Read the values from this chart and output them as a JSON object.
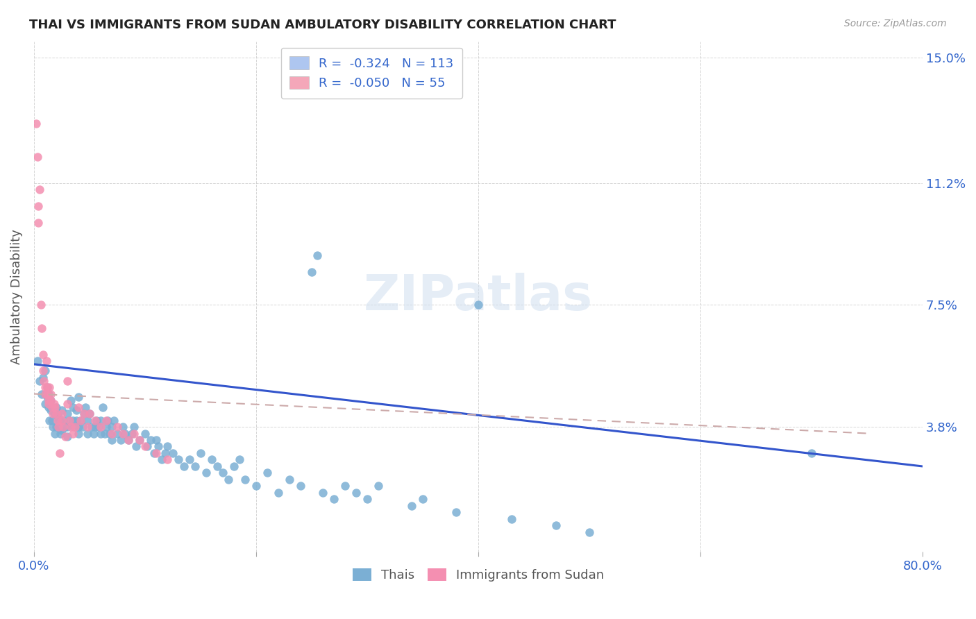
{
  "title": "THAI VS IMMIGRANTS FROM SUDAN AMBULATORY DISABILITY CORRELATION CHART",
  "source": "Source: ZipAtlas.com",
  "ylabel": "Ambulatory Disability",
  "yticks": [
    0.0,
    0.038,
    0.075,
    0.112,
    0.15
  ],
  "ytick_labels": [
    "",
    "3.8%",
    "7.5%",
    "11.2%",
    "15.0%"
  ],
  "xlim": [
    0.0,
    0.8
  ],
  "ylim": [
    0.0,
    0.155
  ],
  "legend_entries": [
    {
      "label": "R =  -0.324   N = 113",
      "color": "#aec6f0"
    },
    {
      "label": "R =  -0.050   N = 55",
      "color": "#f4a7b9"
    }
  ],
  "watermark": "ZIPatlas",
  "thais_color": "#7bafd4",
  "sudan_color": "#f48fb1",
  "trend_thai_color": "#3355cc",
  "background_color": "#ffffff",
  "thais": [
    [
      0.003,
      0.058
    ],
    [
      0.005,
      0.052
    ],
    [
      0.007,
      0.048
    ],
    [
      0.008,
      0.053
    ],
    [
      0.01,
      0.055
    ],
    [
      0.01,
      0.048
    ],
    [
      0.01,
      0.045
    ],
    [
      0.012,
      0.05
    ],
    [
      0.012,
      0.047
    ],
    [
      0.013,
      0.044
    ],
    [
      0.013,
      0.048
    ],
    [
      0.014,
      0.04
    ],
    [
      0.015,
      0.046
    ],
    [
      0.015,
      0.043
    ],
    [
      0.016,
      0.04
    ],
    [
      0.017,
      0.038
    ],
    [
      0.018,
      0.042
    ],
    [
      0.019,
      0.036
    ],
    [
      0.02,
      0.044
    ],
    [
      0.02,
      0.038
    ],
    [
      0.022,
      0.041
    ],
    [
      0.022,
      0.038
    ],
    [
      0.023,
      0.04
    ],
    [
      0.024,
      0.036
    ],
    [
      0.025,
      0.043
    ],
    [
      0.025,
      0.037
    ],
    [
      0.026,
      0.04
    ],
    [
      0.028,
      0.038
    ],
    [
      0.03,
      0.042
    ],
    [
      0.03,
      0.038
    ],
    [
      0.03,
      0.035
    ],
    [
      0.032,
      0.04
    ],
    [
      0.033,
      0.046
    ],
    [
      0.035,
      0.044
    ],
    [
      0.035,
      0.04
    ],
    [
      0.036,
      0.038
    ],
    [
      0.038,
      0.043
    ],
    [
      0.038,
      0.04
    ],
    [
      0.04,
      0.047
    ],
    [
      0.04,
      0.038
    ],
    [
      0.04,
      0.036
    ],
    [
      0.042,
      0.04
    ],
    [
      0.044,
      0.038
    ],
    [
      0.045,
      0.042
    ],
    [
      0.046,
      0.044
    ],
    [
      0.048,
      0.04
    ],
    [
      0.048,
      0.036
    ],
    [
      0.05,
      0.042
    ],
    [
      0.052,
      0.038
    ],
    [
      0.054,
      0.036
    ],
    [
      0.055,
      0.038
    ],
    [
      0.056,
      0.04
    ],
    [
      0.058,
      0.038
    ],
    [
      0.06,
      0.036
    ],
    [
      0.06,
      0.04
    ],
    [
      0.062,
      0.044
    ],
    [
      0.064,
      0.036
    ],
    [
      0.065,
      0.038
    ],
    [
      0.066,
      0.04
    ],
    [
      0.068,
      0.036
    ],
    [
      0.07,
      0.038
    ],
    [
      0.07,
      0.034
    ],
    [
      0.072,
      0.04
    ],
    [
      0.075,
      0.036
    ],
    [
      0.078,
      0.034
    ],
    [
      0.08,
      0.038
    ],
    [
      0.082,
      0.036
    ],
    [
      0.085,
      0.034
    ],
    [
      0.088,
      0.036
    ],
    [
      0.09,
      0.038
    ],
    [
      0.092,
      0.032
    ],
    [
      0.095,
      0.034
    ],
    [
      0.1,
      0.036
    ],
    [
      0.102,
      0.032
    ],
    [
      0.105,
      0.034
    ],
    [
      0.108,
      0.03
    ],
    [
      0.11,
      0.034
    ],
    [
      0.112,
      0.032
    ],
    [
      0.115,
      0.028
    ],
    [
      0.118,
      0.03
    ],
    [
      0.12,
      0.032
    ],
    [
      0.125,
      0.03
    ],
    [
      0.13,
      0.028
    ],
    [
      0.135,
      0.026
    ],
    [
      0.14,
      0.028
    ],
    [
      0.145,
      0.026
    ],
    [
      0.15,
      0.03
    ],
    [
      0.155,
      0.024
    ],
    [
      0.16,
      0.028
    ],
    [
      0.165,
      0.026
    ],
    [
      0.17,
      0.024
    ],
    [
      0.175,
      0.022
    ],
    [
      0.18,
      0.026
    ],
    [
      0.185,
      0.028
    ],
    [
      0.19,
      0.022
    ],
    [
      0.2,
      0.02
    ],
    [
      0.21,
      0.024
    ],
    [
      0.22,
      0.018
    ],
    [
      0.23,
      0.022
    ],
    [
      0.24,
      0.02
    ],
    [
      0.25,
      0.085
    ],
    [
      0.255,
      0.09
    ],
    [
      0.26,
      0.018
    ],
    [
      0.27,
      0.016
    ],
    [
      0.28,
      0.02
    ],
    [
      0.29,
      0.018
    ],
    [
      0.3,
      0.016
    ],
    [
      0.31,
      0.02
    ],
    [
      0.34,
      0.014
    ],
    [
      0.35,
      0.016
    ],
    [
      0.38,
      0.012
    ],
    [
      0.4,
      0.075
    ],
    [
      0.43,
      0.01
    ],
    [
      0.47,
      0.008
    ],
    [
      0.5,
      0.006
    ],
    [
      0.7,
      0.03
    ]
  ],
  "sudan": [
    [
      0.002,
      0.13
    ],
    [
      0.003,
      0.12
    ],
    [
      0.004,
      0.105
    ],
    [
      0.004,
      0.1
    ],
    [
      0.005,
      0.11
    ],
    [
      0.006,
      0.075
    ],
    [
      0.007,
      0.068
    ],
    [
      0.008,
      0.06
    ],
    [
      0.008,
      0.055
    ],
    [
      0.009,
      0.052
    ],
    [
      0.01,
      0.05
    ],
    [
      0.01,
      0.048
    ],
    [
      0.011,
      0.058
    ],
    [
      0.012,
      0.05
    ],
    [
      0.012,
      0.048
    ],
    [
      0.013,
      0.046
    ],
    [
      0.013,
      0.045
    ],
    [
      0.014,
      0.05
    ],
    [
      0.015,
      0.048
    ],
    [
      0.015,
      0.046
    ],
    [
      0.016,
      0.044
    ],
    [
      0.017,
      0.042
    ],
    [
      0.018,
      0.045
    ],
    [
      0.019,
      0.044
    ],
    [
      0.02,
      0.042
    ],
    [
      0.021,
      0.04
    ],
    [
      0.022,
      0.038
    ],
    [
      0.023,
      0.03
    ],
    [
      0.025,
      0.042
    ],
    [
      0.025,
      0.04
    ],
    [
      0.026,
      0.038
    ],
    [
      0.028,
      0.035
    ],
    [
      0.03,
      0.052
    ],
    [
      0.03,
      0.045
    ],
    [
      0.032,
      0.04
    ],
    [
      0.033,
      0.038
    ],
    [
      0.035,
      0.036
    ],
    [
      0.037,
      0.038
    ],
    [
      0.04,
      0.044
    ],
    [
      0.042,
      0.04
    ],
    [
      0.045,
      0.042
    ],
    [
      0.048,
      0.038
    ],
    [
      0.05,
      0.042
    ],
    [
      0.055,
      0.04
    ],
    [
      0.06,
      0.038
    ],
    [
      0.065,
      0.04
    ],
    [
      0.07,
      0.036
    ],
    [
      0.075,
      0.038
    ],
    [
      0.08,
      0.036
    ],
    [
      0.085,
      0.034
    ],
    [
      0.09,
      0.036
    ],
    [
      0.095,
      0.034
    ],
    [
      0.1,
      0.032
    ],
    [
      0.11,
      0.03
    ],
    [
      0.12,
      0.028
    ]
  ]
}
